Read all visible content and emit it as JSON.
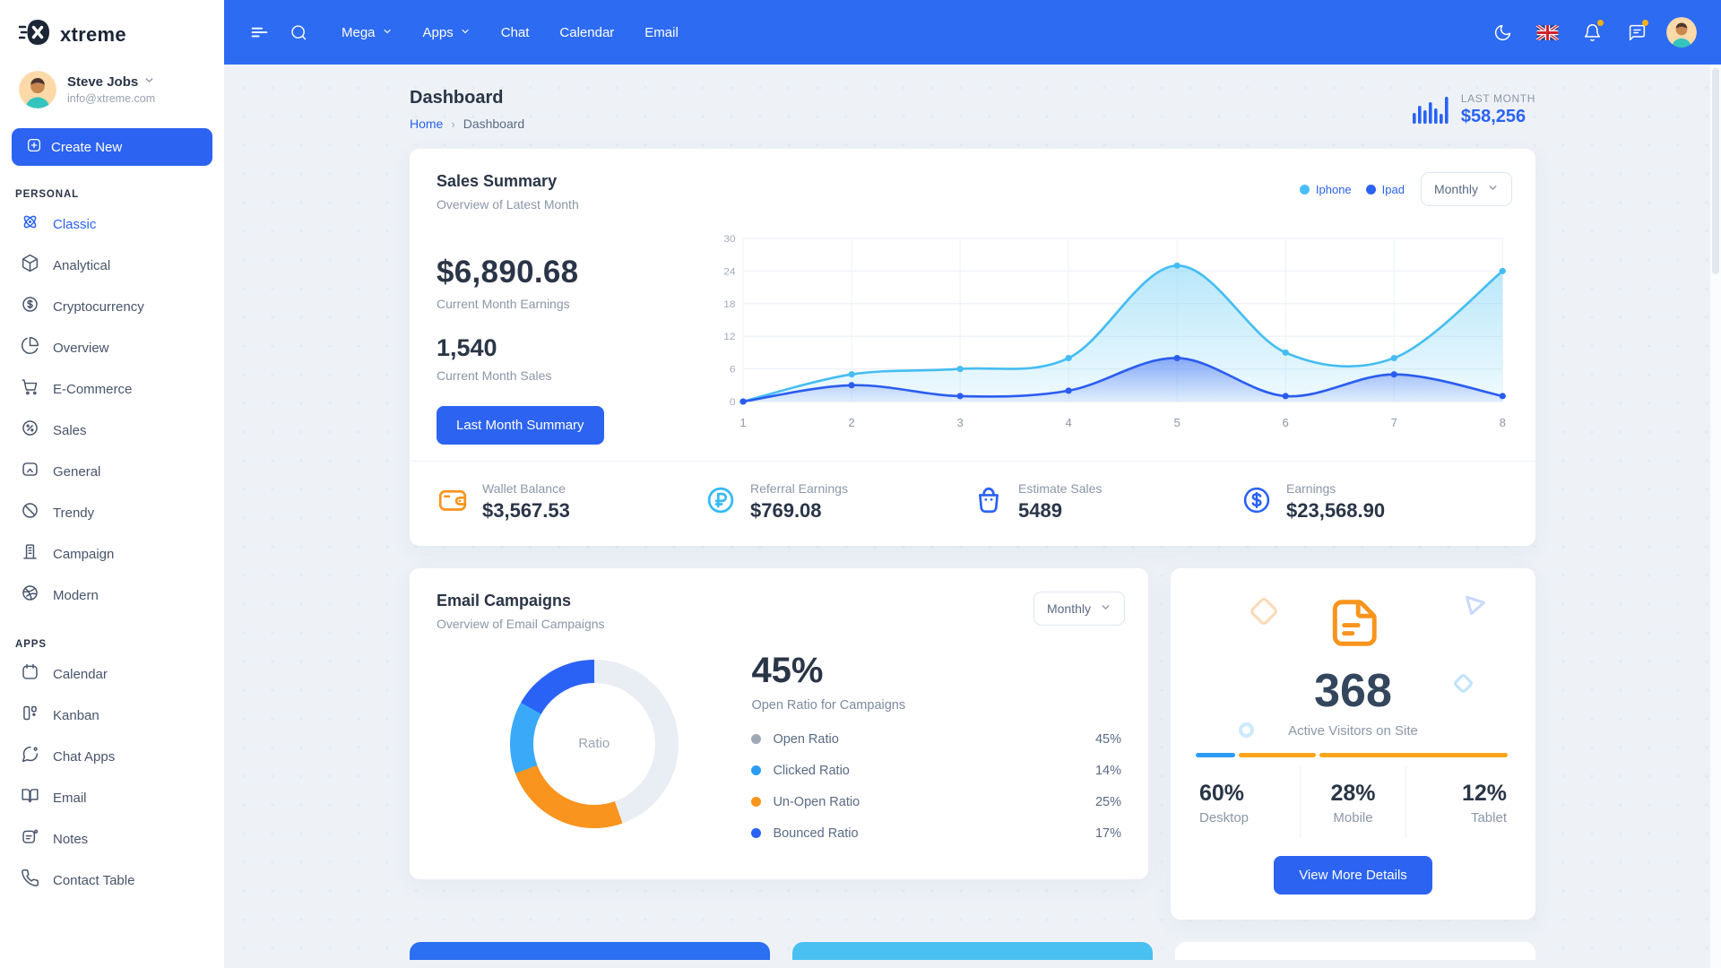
{
  "accent": {
    "navbar": "#2e6bf3",
    "primary": "#2c63f1",
    "link": "#2a62f5",
    "info": "#49beff",
    "orange": "#f8941d",
    "dark": "#2a3547",
    "muted": "#8b97a7"
  },
  "brand": {
    "name": "xtreme"
  },
  "topbar": {
    "icons": {
      "menu": "hamburger-icon",
      "search": "search-icon"
    },
    "menu": [
      {
        "label": "Mega",
        "dropdown": true
      },
      {
        "label": "Apps",
        "dropdown": true
      },
      {
        "label": "Chat",
        "dropdown": false
      },
      {
        "label": "Calendar",
        "dropdown": false
      },
      {
        "label": "Email",
        "dropdown": false
      }
    ],
    "actions": [
      {
        "icon": "moon-icon",
        "badge": false
      },
      {
        "icon": "uk-flag-icon",
        "badge": false
      },
      {
        "icon": "bell-icon",
        "badge": true
      },
      {
        "icon": "message-icon",
        "badge": true
      },
      {
        "icon": "avatar-icon",
        "badge": false
      }
    ]
  },
  "sidebar": {
    "user": {
      "name": "Steve Jobs",
      "email": "info@xtreme.com"
    },
    "create_button": "Create New",
    "create_icon": "plus-square-icon",
    "sections": [
      {
        "title": "PERSONAL",
        "items": [
          {
            "label": "Classic",
            "icon": "atom-icon",
            "active": true
          },
          {
            "label": "Analytical",
            "icon": "box-icon",
            "active": false
          },
          {
            "label": "Cryptocurrency",
            "icon": "dollar-circle-icon",
            "active": false
          },
          {
            "label": "Overview",
            "icon": "pie-chart-icon",
            "active": false
          },
          {
            "label": "E-Commerce",
            "icon": "shopping-cart-icon",
            "active": false
          },
          {
            "label": "Sales",
            "icon": "percent-circle-icon",
            "active": false
          },
          {
            "label": "General",
            "icon": "image-icon",
            "active": false
          },
          {
            "label": "Trendy",
            "icon": "slash-circle-icon",
            "active": false
          },
          {
            "label": "Campaign",
            "icon": "building-icon",
            "active": false
          },
          {
            "label": "Modern",
            "icon": "dribbble-icon",
            "active": false
          }
        ]
      },
      {
        "title": "APPS",
        "items": [
          {
            "label": "Calendar",
            "icon": "calendar-icon",
            "active": false
          },
          {
            "label": "Kanban",
            "icon": "kanban-icon",
            "active": false
          },
          {
            "label": "Chat Apps",
            "icon": "message-circle-icon",
            "active": false
          },
          {
            "label": "Email",
            "icon": "book-open-icon",
            "active": false
          },
          {
            "label": "Notes",
            "icon": "note-icon",
            "active": false
          },
          {
            "label": "Contact Table",
            "icon": "phone-icon",
            "active": false
          }
        ]
      }
    ]
  },
  "header": {
    "title": "Dashboard",
    "breadcrumb_home": "Home",
    "breadcrumb_sep": "›",
    "breadcrumb_current": "Dashboard",
    "last_month_label": "LAST MONTH",
    "last_month_value": "$58,256",
    "bars_icon": "bar-graph-icon"
  },
  "sales_summary": {
    "title": "Sales Summary",
    "subtitle": "Overview of Latest Month",
    "earnings_value": "$6,890.68",
    "earnings_label": "Current Month Earnings",
    "sales_value": "1,540",
    "sales_label": "Current Month Sales",
    "button_label": "Last Month Summary",
    "period": "Monthly",
    "legend": [
      {
        "label": "Iphone",
        "color": "#49beff"
      },
      {
        "label": "Ipad",
        "color": "#2a62f5"
      }
    ]
  },
  "chart_data": [
    {
      "type": "area",
      "title": "Sales Summary — Iphone vs Ipad",
      "x": [
        1,
        2,
        3,
        4,
        5,
        6,
        7,
        8
      ],
      "series": [
        {
          "name": "Iphone",
          "color": "#45bdf2",
          "values": [
            0,
            5,
            6,
            8,
            25,
            9,
            8,
            24
          ]
        },
        {
          "name": "Ipad",
          "color": "#2a5cf0",
          "values": [
            0,
            3,
            1,
            2,
            8,
            1,
            5,
            1
          ]
        }
      ],
      "ylim": [
        0,
        30
      ],
      "yticks": [
        0,
        6,
        12,
        18,
        24,
        30
      ],
      "grid": true,
      "legend_position": "top-right"
    },
    {
      "type": "pie",
      "title": "Email Campaigns Ratio",
      "labels": [
        "Open Ratio",
        "Un-Open Ratio",
        "Clicked Ratio",
        "Bounced Ratio"
      ],
      "values": [
        45,
        25,
        14,
        17
      ],
      "colors": [
        "#e9edf4",
        "#f9941e",
        "#3aa9f7",
        "#2a62f5"
      ],
      "center_label": "Ratio"
    }
  ],
  "stats": [
    {
      "icon": "wallet-icon",
      "color": "#f8941d",
      "label": "Wallet Balance",
      "value": "$3,567.53"
    },
    {
      "icon": "ruble-icon",
      "color": "#35baf6",
      "label": "Referral Earnings",
      "value": "$769.08"
    },
    {
      "icon": "shopping-bag-icon",
      "color": "#2a62f5",
      "label": "Estimate Sales",
      "value": "5489"
    },
    {
      "icon": "dollar-circle-icon",
      "color": "#2a62f5",
      "label": "Earnings",
      "value": "$23,568.90"
    }
  ],
  "email_campaigns": {
    "title": "Email Campaigns",
    "subtitle": "Overview of Email Campaigns",
    "period": "Monthly",
    "donut_center": "Ratio",
    "highlight_value": "45%",
    "highlight_label": "Open Ratio for Campaigns",
    "legend": [
      {
        "label": "Open Ratio",
        "value": "45%",
        "color": "#9fa9b5"
      },
      {
        "label": "Clicked Ratio",
        "value": "14%",
        "color": "#2d9cf5"
      },
      {
        "label": "Un-Open Ratio",
        "value": "25%",
        "color": "#f9941e"
      },
      {
        "label": "Bounced Ratio",
        "value": "17%",
        "color": "#2a62f5"
      }
    ]
  },
  "visitors": {
    "icon": "document-icon",
    "count": "368",
    "label": "Active Visitors on Site",
    "bar_segments": [
      {
        "color": "#2d9cf5",
        "pct": 12.5
      },
      {
        "color": "#f9a61b",
        "pct": 24.5
      },
      {
        "color": "#f9a61b",
        "pct": 60
      }
    ],
    "stats": [
      {
        "value": "60%",
        "label": "Desktop"
      },
      {
        "value": "28%",
        "label": "Mobile"
      },
      {
        "value": "12%",
        "label": "Tablet"
      }
    ],
    "button_label": "View More Details"
  },
  "bottom_cards": [
    {
      "color": "#2b6ff2"
    },
    {
      "color": "#4ac0f2"
    },
    {
      "color": "#ffffff"
    }
  ]
}
